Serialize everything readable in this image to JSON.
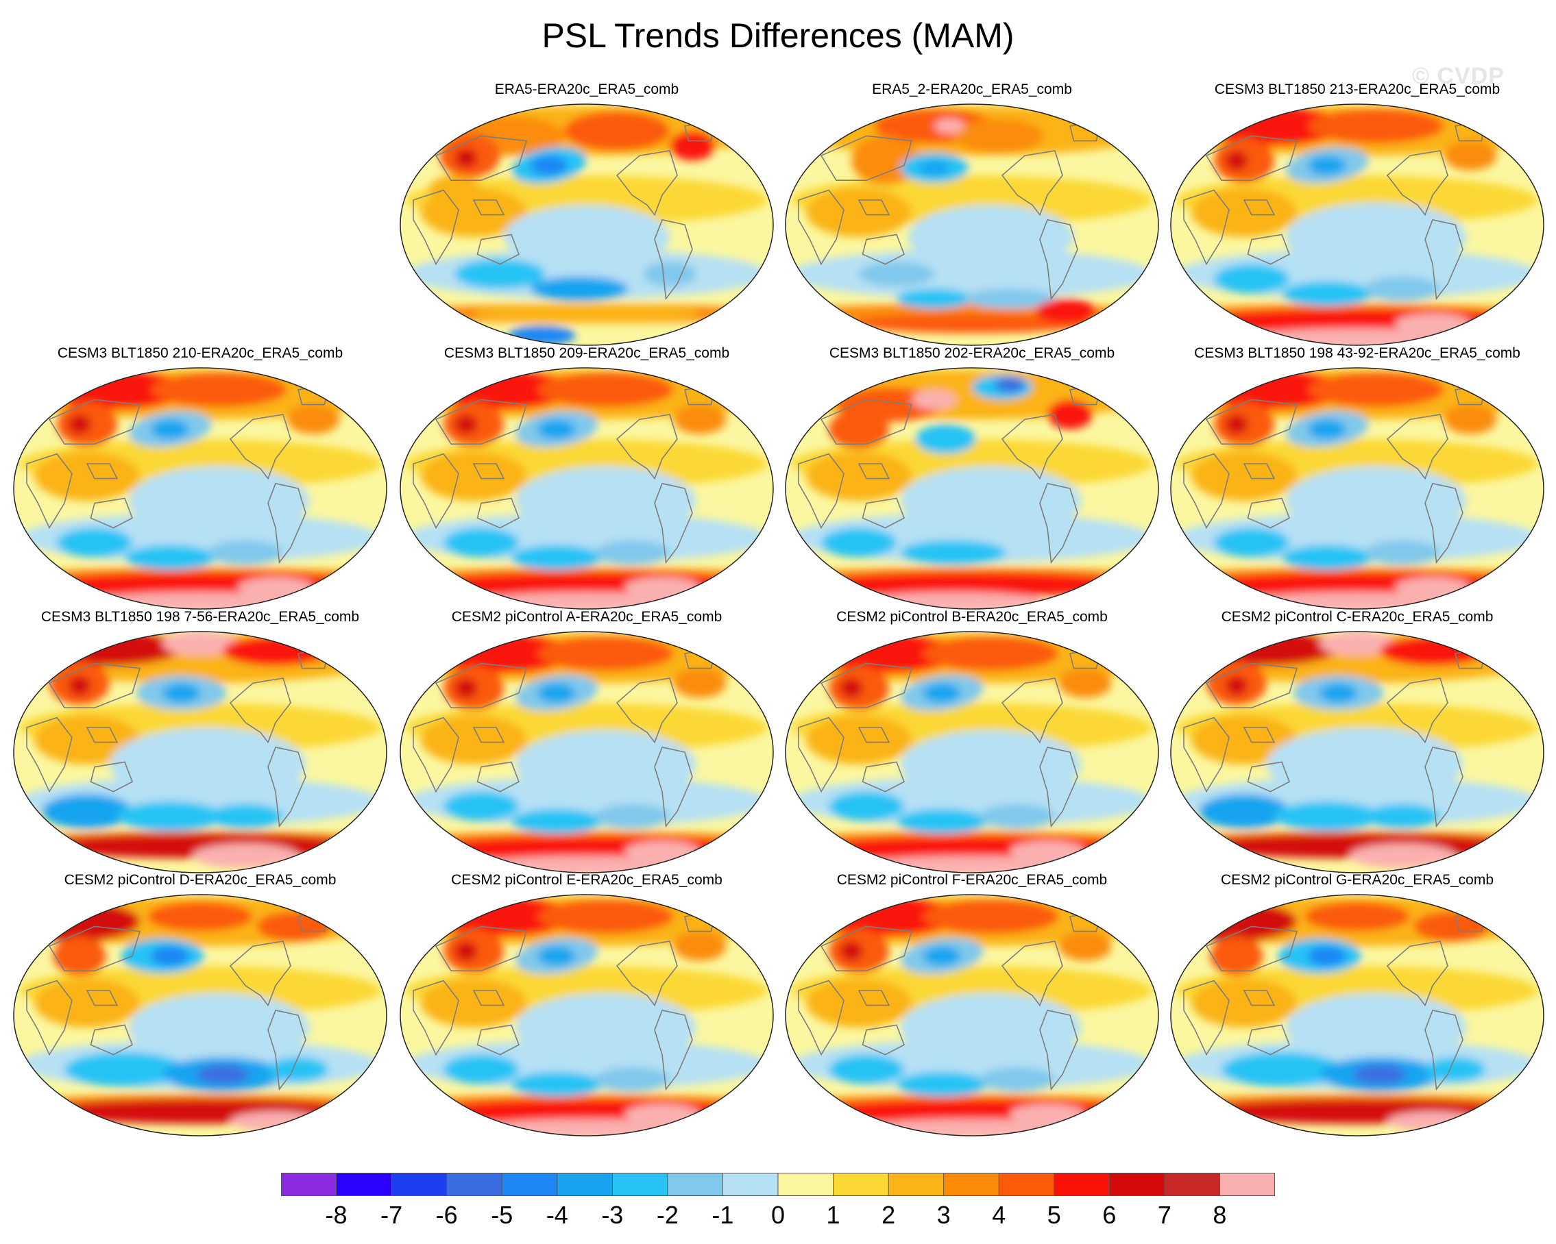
{
  "figure": {
    "title": "PSL Trends Differences (MAM)",
    "watermark": "© CVDP"
  },
  "chart_data": {
    "type": "heatmap",
    "title": "PSL Trends Differences (MAM)",
    "projection": "global map (Robinson-like oval), Pacific-centred, coastlines in grey",
    "panel_grid": {
      "rows": 4,
      "columns": 4,
      "empty_slots": [
        "row1-col1"
      ]
    },
    "panels": [
      {
        "title": "ERA5-ERA20c_ERA5_comb",
        "row": 0,
        "col": 1,
        "pattern": "era5"
      },
      {
        "title": "ERA5_2-ERA20c_ERA5_comb",
        "row": 0,
        "col": 2,
        "pattern": "era5b"
      },
      {
        "title": "CESM3 BLT1850 213-ERA20c_ERA5_comb",
        "row": 0,
        "col": 3,
        "pattern": "model"
      },
      {
        "title": "CESM3 BLT1850 210-ERA20c_ERA5_comb",
        "row": 1,
        "col": 0,
        "pattern": "model"
      },
      {
        "title": "CESM3 BLT1850 209-ERA20c_ERA5_comb",
        "row": 1,
        "col": 1,
        "pattern": "model"
      },
      {
        "title": "CESM3 BLT1850 202-ERA20c_ERA5_comb",
        "row": 1,
        "col": 2,
        "pattern": "arcticlow"
      },
      {
        "title": "CESM3 BLT1850 198 43-92-ERA20c_ERA5_comb",
        "row": 1,
        "col": 3,
        "pattern": "model"
      },
      {
        "title": "CESM3 BLT1850 198 7-56-ERA20c_ERA5_comb",
        "row": 2,
        "col": 0,
        "pattern": "strong"
      },
      {
        "title": "CESM2 piControl A-ERA20c_ERA5_comb",
        "row": 2,
        "col": 1,
        "pattern": "model"
      },
      {
        "title": "CESM2 piControl B-ERA20c_ERA5_comb",
        "row": 2,
        "col": 2,
        "pattern": "model"
      },
      {
        "title": "CESM2 piControl C-ERA20c_ERA5_comb",
        "row": 2,
        "col": 3,
        "pattern": "strong"
      },
      {
        "title": "CESM2 piControl D-ERA20c_ERA5_comb",
        "row": 3,
        "col": 0,
        "pattern": "deeplow"
      },
      {
        "title": "CESM2 piControl E-ERA20c_ERA5_comb",
        "row": 3,
        "col": 1,
        "pattern": "model"
      },
      {
        "title": "CESM2 piControl F-ERA20c_ERA5_comb",
        "row": 3,
        "col": 2,
        "pattern": "model"
      },
      {
        "title": "CESM2 piControl G-ERA20c_ERA5_comb",
        "row": 3,
        "col": 3,
        "pattern": "deeplow"
      }
    ],
    "colorbar": {
      "labels": [
        "-8",
        "-7",
        "-6",
        "-5",
        "-4",
        "-3",
        "-2",
        "-1",
        "0",
        "1",
        "2",
        "3",
        "4",
        "5",
        "6",
        "7",
        "8"
      ],
      "colors": [
        "#8a2be2",
        "#2a00ff",
        "#1c3ff0",
        "#3a6ee0",
        "#1f87f5",
        "#16a4f0",
        "#28c3f5",
        "#80c8ec",
        "#b6e0f4",
        "#fbf7a0",
        "#fbd834",
        "#fbb316",
        "#fb8c0a",
        "#fb5a0a",
        "#fa1208",
        "#d40a0a",
        "#c82828",
        "#fbb0b0"
      ],
      "orientation": "horizontal",
      "placement": "bottom"
    }
  }
}
